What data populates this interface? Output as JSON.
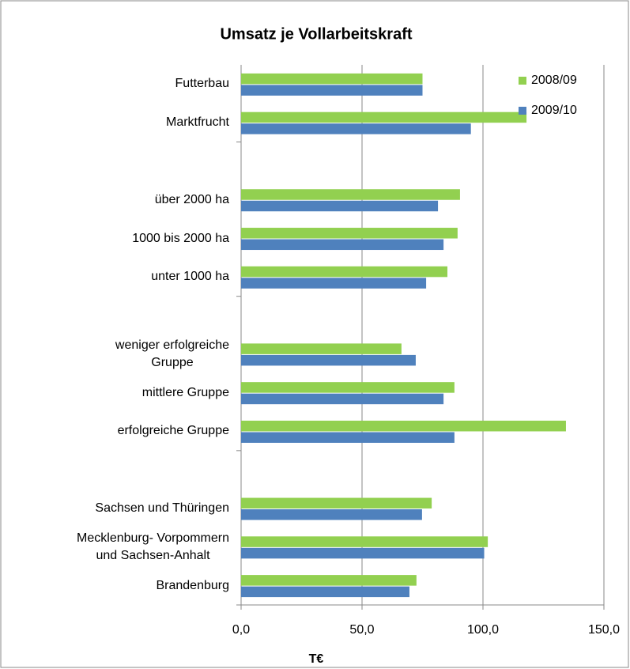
{
  "chart_data": {
    "type": "barh",
    "title": "Umsatz je Vollarbeitskraft",
    "x_label": "T€",
    "categories": [
      "Futterbau",
      "Marktfrucht",
      null,
      "über 2000  ha",
      "1000 bis 2000 ha",
      "unter 1000 ha",
      null,
      "weniger erfolgreiche\nGruppe",
      "mittlere Gruppe",
      "erfolgreiche Gruppe",
      null,
      "Sachsen und Thüringen",
      "Mecklenburg- Vorpommern\nund Sachsen-Anhalt",
      "Brandenburg"
    ],
    "series": [
      {
        "name": "2008/09",
        "color": "#92d050",
        "values": [
          75,
          118,
          null,
          90.5,
          89.5,
          85.3,
          null,
          66.3,
          88.2,
          134.3,
          null,
          78.8,
          102,
          72.5
        ]
      },
      {
        "name": "2009/10",
        "color": "#4f81bd",
        "values": [
          75,
          95,
          null,
          81.4,
          83.7,
          76.5,
          null,
          72.2,
          83.7,
          88.2,
          null,
          74.8,
          100.5,
          69.6
        ]
      }
    ],
    "xlim": [
      0,
      150
    ],
    "xticks": [
      {
        "value": 0,
        "label": "0,0"
      },
      {
        "value": 50,
        "label": "50,0"
      },
      {
        "value": 100,
        "label": "100,0"
      },
      {
        "value": 150,
        "label": "150,0"
      }
    ],
    "grid": true,
    "legend": "top-right"
  }
}
